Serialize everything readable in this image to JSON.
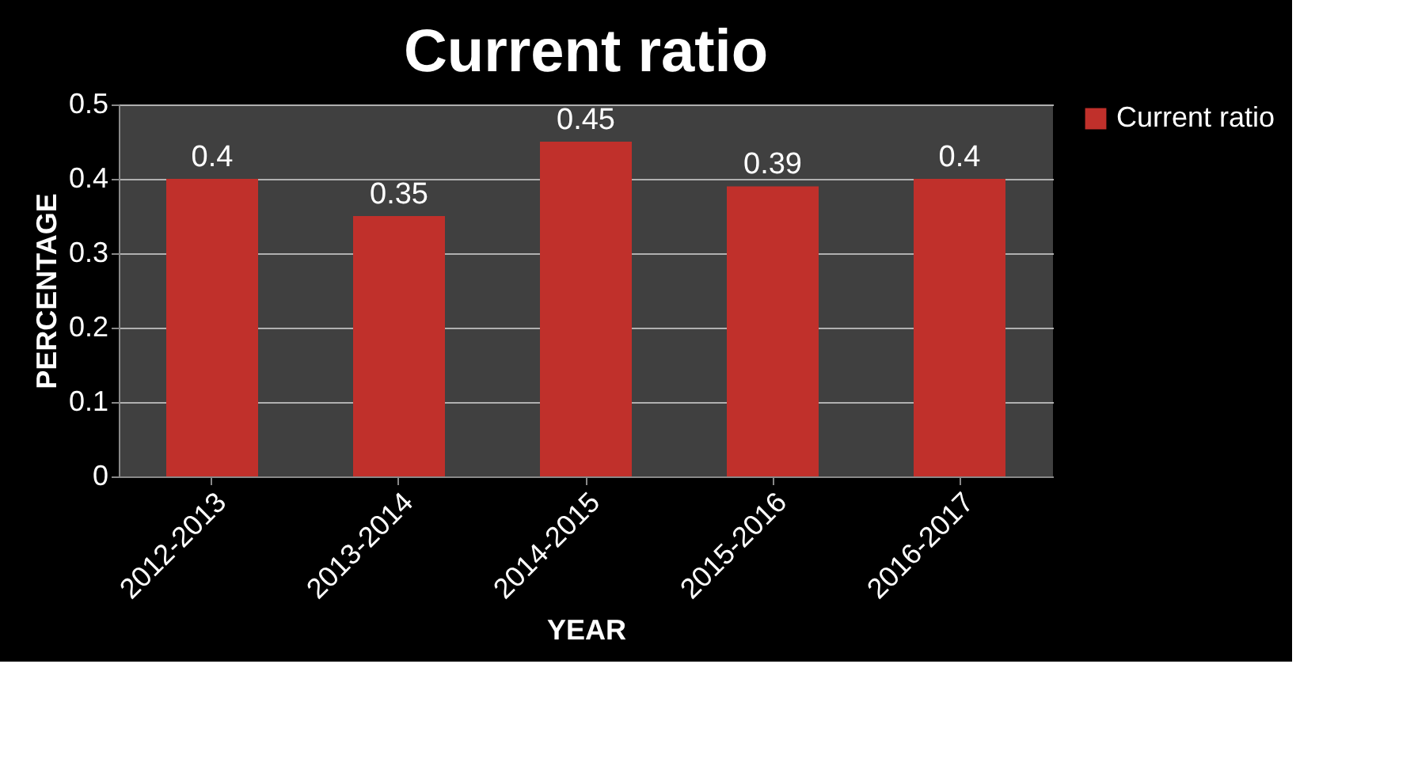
{
  "chart_data": {
    "type": "bar",
    "title": "Current ratio",
    "xlabel": "YEAR",
    "ylabel": "PERCENTAGE",
    "categories": [
      "2012-2013",
      "2013-2014",
      "2014-2015",
      "2015-2016",
      "2016-2017"
    ],
    "series": [
      {
        "name": "Current ratio",
        "color": "#c0302b",
        "values": [
          0.4,
          0.35,
          0.45,
          0.39,
          0.4
        ]
      }
    ],
    "ylim": [
      0,
      0.5
    ],
    "yticks": [
      0,
      0.1,
      0.2,
      0.3,
      0.4,
      0.5
    ],
    "grid": "y",
    "legend": "right",
    "data_labels": true
  }
}
